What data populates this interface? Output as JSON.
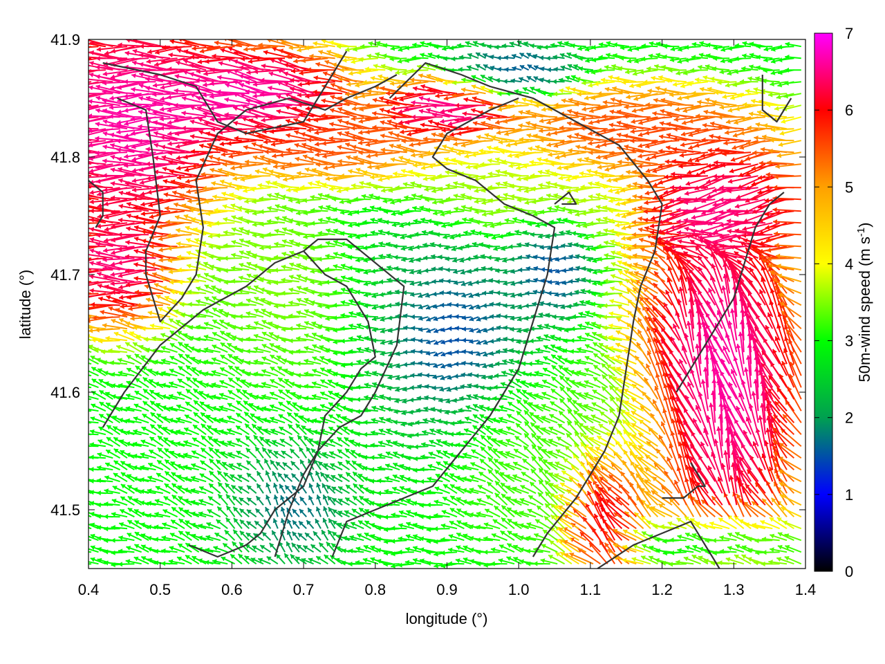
{
  "chart_data": {
    "type": "quiver",
    "title": "",
    "xlabel": "longitude (°)",
    "ylabel": "latitude (°)",
    "colorbar_label": "50m-wind speed (m s",
    "colorbar_label_sup": "-1",
    "colorbar_label_close": ")",
    "xlim": [
      0.4,
      1.4
    ],
    "ylim": [
      41.45,
      41.9
    ],
    "clim": [
      0,
      7
    ],
    "grid": false,
    "legend": "colorbar-right",
    "x_ticks": [
      {
        "value": 0.4,
        "label": "0.4"
      },
      {
        "value": 0.5,
        "label": "0.5"
      },
      {
        "value": 0.6,
        "label": "0.6"
      },
      {
        "value": 0.7,
        "label": "0.7"
      },
      {
        "value": 0.8,
        "label": "0.8"
      },
      {
        "value": 0.9,
        "label": "0.9"
      },
      {
        "value": 1.0,
        "label": "1.0"
      },
      {
        "value": 1.1,
        "label": "1.1"
      },
      {
        "value": 1.2,
        "label": "1.2"
      },
      {
        "value": 1.3,
        "label": "1.3"
      },
      {
        "value": 1.4,
        "label": "1.4"
      }
    ],
    "y_ticks": [
      {
        "value": 41.5,
        "label": "41.5"
      },
      {
        "value": 41.6,
        "label": "41.6"
      },
      {
        "value": 41.7,
        "label": "41.7"
      },
      {
        "value": 41.8,
        "label": "41.8"
      },
      {
        "value": 41.9,
        "label": "41.9"
      }
    ],
    "colorbar_ticks": [
      {
        "value": 0,
        "label": "0"
      },
      {
        "value": 1,
        "label": "1"
      },
      {
        "value": 2,
        "label": "2"
      },
      {
        "value": 3,
        "label": "3"
      },
      {
        "value": 4,
        "label": "4"
      },
      {
        "value": 5,
        "label": "5"
      },
      {
        "value": 6,
        "label": "6"
      },
      {
        "value": 7,
        "label": "7"
      }
    ],
    "colormap": [
      "#000000",
      "#0000ff",
      "#00a050",
      "#00ff00",
      "#ffff00",
      "#ffa000",
      "#ff0000",
      "#ff00ff"
    ],
    "contour_color": "#333333",
    "contours": [
      [
        [
          0.42,
          41.88
        ],
        [
          0.5,
          41.87
        ],
        [
          0.55,
          41.86
        ],
        [
          0.58,
          41.83
        ],
        [
          0.62,
          41.82
        ],
        [
          0.7,
          41.83
        ],
        [
          0.74,
          41.87
        ],
        [
          0.76,
          41.89
        ]
      ],
      [
        [
          0.82,
          41.85
        ],
        [
          0.87,
          41.88
        ],
        [
          0.92,
          41.87
        ],
        [
          0.96,
          41.86
        ],
        [
          1.02,
          41.85
        ],
        [
          1.08,
          41.83
        ],
        [
          1.14,
          41.81
        ],
        [
          1.18,
          41.78
        ],
        [
          1.2,
          41.76
        ],
        [
          1.19,
          41.72
        ],
        [
          1.17,
          41.69
        ],
        [
          1.16,
          41.66
        ],
        [
          1.15,
          41.62
        ],
        [
          1.14,
          41.58
        ],
        [
          1.12,
          41.55
        ],
        [
          1.08,
          41.51
        ],
        [
          1.04,
          41.48
        ],
        [
          1.02,
          41.46
        ]
      ],
      [
        [
          0.44,
          41.85
        ],
        [
          0.48,
          41.84
        ],
        [
          0.49,
          41.8
        ],
        [
          0.5,
          41.75
        ],
        [
          0.48,
          41.72
        ],
        [
          0.48,
          41.7
        ],
        [
          0.5,
          41.66
        ],
        [
          0.53,
          41.68
        ],
        [
          0.55,
          41.7
        ],
        [
          0.56,
          41.74
        ],
        [
          0.55,
          41.78
        ],
        [
          0.58,
          41.82
        ],
        [
          0.62,
          41.84
        ],
        [
          0.68,
          41.85
        ],
        [
          0.73,
          41.84
        ],
        [
          0.76,
          41.85
        ],
        [
          0.8,
          41.86
        ],
        [
          0.83,
          41.87
        ]
      ],
      [
        [
          0.42,
          41.57
        ],
        [
          0.45,
          41.6
        ],
        [
          0.5,
          41.64
        ],
        [
          0.56,
          41.67
        ],
        [
          0.62,
          41.69
        ],
        [
          0.66,
          41.71
        ],
        [
          0.7,
          41.72
        ],
        [
          0.72,
          41.73
        ],
        [
          0.76,
          41.73
        ],
        [
          0.8,
          41.71
        ],
        [
          0.84,
          41.69
        ],
        [
          0.83,
          41.64
        ],
        [
          0.8,
          41.6
        ],
        [
          0.78,
          41.58
        ],
        [
          0.75,
          41.57
        ],
        [
          0.72,
          41.55
        ],
        [
          0.7,
          41.52
        ],
        [
          0.66,
          41.5
        ],
        [
          0.64,
          41.48
        ],
        [
          0.62,
          41.47
        ],
        [
          0.58,
          41.46
        ],
        [
          0.54,
          41.47
        ]
      ],
      [
        [
          0.74,
          41.46
        ],
        [
          0.76,
          41.49
        ],
        [
          0.8,
          41.5
        ],
        [
          0.84,
          41.51
        ],
        [
          0.88,
          41.52
        ],
        [
          0.92,
          41.55
        ],
        [
          0.96,
          41.58
        ],
        [
          1.0,
          41.62
        ],
        [
          1.02,
          41.66
        ],
        [
          1.04,
          41.7
        ],
        [
          1.05,
          41.74
        ],
        [
          1.02,
          41.75
        ],
        [
          0.98,
          41.76
        ],
        [
          0.94,
          41.78
        ],
        [
          0.9,
          41.79
        ],
        [
          0.88,
          41.8
        ],
        [
          0.9,
          41.82
        ],
        [
          0.96,
          41.84
        ],
        [
          1.0,
          41.85
        ]
      ],
      [
        [
          0.66,
          41.46
        ],
        [
          0.68,
          41.5
        ],
        [
          0.7,
          41.53
        ],
        [
          0.72,
          41.55
        ],
        [
          0.73,
          41.58
        ],
        [
          0.76,
          41.6
        ],
        [
          0.78,
          41.62
        ],
        [
          0.8,
          41.63
        ],
        [
          0.79,
          41.66
        ],
        [
          0.76,
          41.69
        ],
        [
          0.73,
          41.7
        ],
        [
          0.7,
          41.72
        ]
      ],
      [
        [
          1.34,
          41.87
        ],
        [
          1.34,
          41.84
        ],
        [
          1.36,
          41.83
        ],
        [
          1.38,
          41.85
        ]
      ],
      [
        [
          1.11,
          41.45
        ],
        [
          1.16,
          41.47
        ],
        [
          1.2,
          41.48
        ],
        [
          1.24,
          41.49
        ],
        [
          1.26,
          41.47
        ],
        [
          1.28,
          41.45
        ]
      ],
      [
        [
          1.2,
          41.51
        ],
        [
          1.23,
          41.51
        ],
        [
          1.25,
          41.52
        ],
        [
          1.26,
          41.52
        ],
        [
          1.25,
          41.53
        ],
        [
          1.24,
          41.54
        ]
      ],
      [
        [
          1.22,
          41.6
        ],
        [
          1.24,
          41.62
        ],
        [
          1.26,
          41.64
        ],
        [
          1.28,
          41.66
        ],
        [
          1.3,
          41.68
        ],
        [
          1.31,
          41.7
        ],
        [
          1.33,
          41.74
        ],
        [
          1.35,
          41.76
        ],
        [
          1.37,
          41.77
        ]
      ],
      [
        [
          1.06,
          41.76
        ],
        [
          1.08,
          41.76
        ],
        [
          1.07,
          41.77
        ],
        [
          1.05,
          41.76
        ]
      ],
      [
        [
          0.4,
          41.78
        ],
        [
          0.42,
          41.77
        ],
        [
          0.42,
          41.75
        ],
        [
          0.41,
          41.74
        ]
      ]
    ],
    "wind_regions": [
      {
        "type": "ellipse",
        "cx": 0.48,
        "cy": 41.83,
        "rx": 0.12,
        "ry": 0.09,
        "speed": 7.0,
        "dir": 180
      },
      {
        "type": "ellipse",
        "cx": 0.65,
        "cy": 41.85,
        "rx": 0.12,
        "ry": 0.04,
        "speed": 7.0,
        "dir": 170
      },
      {
        "type": "ellipse",
        "cx": 0.78,
        "cy": 41.81,
        "rx": 0.15,
        "ry": 0.03,
        "speed": 5.8,
        "dir": 175
      },
      {
        "type": "ellipse",
        "cx": 0.92,
        "cy": 41.84,
        "rx": 0.08,
        "ry": 0.025,
        "speed": 7.0,
        "dir": 180
      },
      {
        "type": "ellipse",
        "cx": 1.18,
        "cy": 41.82,
        "rx": 0.16,
        "ry": 0.035,
        "speed": 5.8,
        "dir": 180
      },
      {
        "type": "ellipse",
        "cx": 1.3,
        "cy": 41.76,
        "rx": 0.1,
        "ry": 0.05,
        "speed": 6.8,
        "dir": 200
      },
      {
        "type": "ellipse",
        "cx": 1.29,
        "cy": 41.6,
        "rx": 0.1,
        "ry": 0.13,
        "speed": 7.0,
        "dir": 100
      },
      {
        "type": "ellipse",
        "cx": 1.13,
        "cy": 41.5,
        "rx": 0.05,
        "ry": 0.05,
        "speed": 7.0,
        "dir": 120
      },
      {
        "type": "ellipse",
        "cx": 0.47,
        "cy": 41.7,
        "rx": 0.07,
        "ry": 0.05,
        "speed": 7.0,
        "dir": 180
      },
      {
        "type": "ellipse",
        "cx": 0.9,
        "cy": 41.65,
        "rx": 0.09,
        "ry": 0.06,
        "speed": 0.6,
        "dir": 200
      },
      {
        "type": "ellipse",
        "cx": 0.68,
        "cy": 41.51,
        "rx": 0.08,
        "ry": 0.05,
        "speed": 1.0,
        "dir": 100
      },
      {
        "type": "ellipse",
        "cx": 1.05,
        "cy": 41.71,
        "rx": 0.05,
        "ry": 0.04,
        "speed": 1.3,
        "dir": 180
      },
      {
        "type": "ellipse",
        "cx": 1.0,
        "cy": 41.87,
        "rx": 0.08,
        "ry": 0.02,
        "speed": 1.4,
        "dir": 160
      },
      {
        "type": "ellipse",
        "cx": 0.88,
        "cy": 41.66,
        "rx": 0.14,
        "ry": 0.1,
        "speed": 2.2,
        "dir": 180
      },
      {
        "type": "ellipse",
        "cx": 0.62,
        "cy": 41.58,
        "rx": 0.18,
        "ry": 0.12,
        "speed": 3.0,
        "dir": 150
      },
      {
        "type": "ellipse",
        "cx": 1.06,
        "cy": 41.55,
        "rx": 0.14,
        "ry": 0.07,
        "speed": 3.3,
        "dir": 140
      },
      {
        "type": "ellipse",
        "cx": 0.7,
        "cy": 41.67,
        "rx": 0.14,
        "ry": 0.08,
        "speed": 3.7,
        "dir": 175
      },
      {
        "type": "ellipse",
        "cx": 1.0,
        "cy": 41.77,
        "rx": 0.16,
        "ry": 0.04,
        "speed": 3.8,
        "dir": 178
      },
      {
        "type": "ellipse",
        "cx": 1.28,
        "cy": 41.47,
        "rx": 0.1,
        "ry": 0.02,
        "speed": 2.4,
        "dir": 180
      }
    ]
  }
}
